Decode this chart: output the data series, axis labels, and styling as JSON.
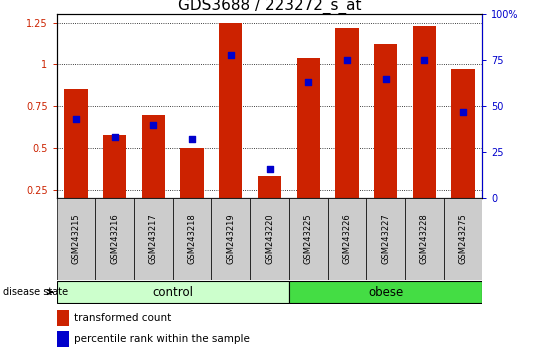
{
  "title": "GDS3688 / 223272_s_at",
  "samples": [
    "GSM243215",
    "GSM243216",
    "GSM243217",
    "GSM243218",
    "GSM243219",
    "GSM243220",
    "GSM243225",
    "GSM243226",
    "GSM243227",
    "GSM243228",
    "GSM243275"
  ],
  "transformed_count": [
    0.85,
    0.58,
    0.7,
    0.5,
    1.25,
    0.335,
    1.04,
    1.22,
    1.12,
    1.23,
    0.97
  ],
  "percentile_rank_pct": [
    43,
    33,
    40,
    32,
    78,
    16,
    63,
    75,
    65,
    75,
    47
  ],
  "ylim_left": [
    0.2,
    1.3
  ],
  "ylim_right": [
    0.0,
    100.0
  ],
  "yticks_left": [
    0.25,
    0.5,
    0.75,
    1.0,
    1.25
  ],
  "yticks_right": [
    0,
    25,
    50,
    75,
    100
  ],
  "ytick_labels_left": [
    "0.25",
    "0.5",
    "0.75",
    "1",
    "1.25"
  ],
  "ytick_labels_right": [
    "0",
    "25",
    "50",
    "75",
    "100%"
  ],
  "groups": [
    {
      "label": "control",
      "start": 0,
      "end": 5
    },
    {
      "label": "obese",
      "start": 6,
      "end": 10
    }
  ],
  "bar_color": "#cc2200",
  "dot_color": "#0000cc",
  "bar_width": 0.6,
  "bg_color": "#ffffff",
  "plot_bg_color": "#ffffff",
  "title_fontsize": 11,
  "tick_fontsize": 7,
  "legend_fontsize": 7.5,
  "group_fontsize": 8.5,
  "sample_fontsize": 6,
  "cell_color": "#cccccc",
  "group_color_control": "#ccffcc",
  "group_color_obese": "#44dd44"
}
